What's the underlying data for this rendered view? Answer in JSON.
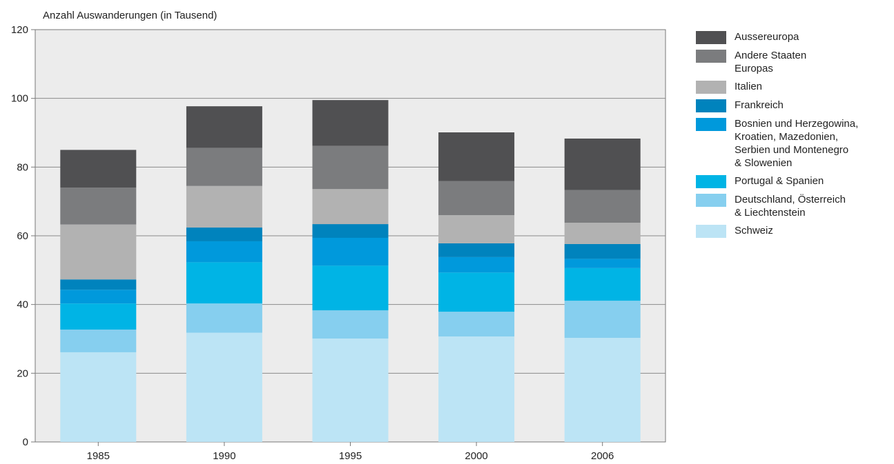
{
  "chart_data": {
    "type": "bar",
    "stacked": true,
    "ylabel": "Anzahl Auswanderungen (in Tausend)",
    "xlabel": "",
    "ylim": [
      0,
      120
    ],
    "yticks": [
      "0",
      "20",
      "40",
      "60",
      "80",
      "100",
      "120"
    ],
    "grid": true,
    "legend_position": "right",
    "categories": [
      "1985",
      "1990",
      "1995",
      "2000",
      "2006"
    ],
    "series": [
      {
        "name": "Schweiz",
        "color": "#bce4f5",
        "values": [
          26.1,
          31.8,
          30.1,
          30.7,
          30.3
        ]
      },
      {
        "name": "Deutschland, Österreich\n& Liechtenstein",
        "color": "#86cfef",
        "values": [
          6.6,
          8.5,
          8.2,
          7.2,
          10.8
        ]
      },
      {
        "name": "Portugal & Spanien",
        "color": "#00b4e5",
        "values": [
          7.6,
          12.0,
          13.0,
          11.4,
          9.5
        ]
      },
      {
        "name": "Bosnien und Herzegowina,\nKroatien, Mazedonien,\nSerbien und Montenegro\n& Slowenien",
        "color": "#0099dc",
        "values": [
          4.0,
          6.1,
          8.1,
          4.5,
          2.7
        ]
      },
      {
        "name": "Frankreich",
        "color": "#0083bd",
        "values": [
          3.0,
          4.0,
          4.0,
          4.0,
          4.3
        ]
      },
      {
        "name": "Italien",
        "color": "#b2b2b2",
        "values": [
          16.0,
          12.1,
          10.2,
          8.2,
          6.2
        ]
      },
      {
        "name": "Andere Staaten\nEuropas",
        "color": "#7b7c7e",
        "values": [
          10.7,
          11.1,
          12.6,
          9.9,
          9.5
        ]
      },
      {
        "name": "Aussereuropa",
        "color": "#505052",
        "values": [
          11.0,
          12.1,
          13.3,
          14.2,
          15.0
        ]
      }
    ]
  }
}
